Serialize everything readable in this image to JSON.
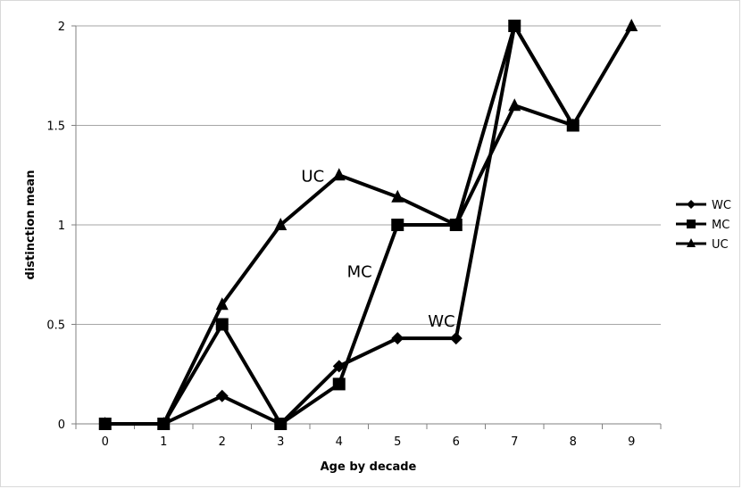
{
  "chart_data": {
    "type": "line",
    "title": "",
    "xlabel": "Age by decade",
    "ylabel": "distinction mean",
    "x": [
      0,
      1,
      2,
      3,
      4,
      5,
      6,
      7,
      8,
      9
    ],
    "x_tick_labels": [
      "0",
      "1",
      "2",
      "3",
      "4",
      "5",
      "6",
      "7",
      "8",
      "9"
    ],
    "y_ticks": [
      0,
      0.5,
      1,
      1.5,
      2
    ],
    "y_tick_labels": [
      "0",
      "0.5",
      "1",
      "1.5",
      "2"
    ],
    "ylim": [
      0,
      2
    ],
    "grid": "horizontal",
    "legend_position": "right",
    "series": [
      {
        "name": "WC",
        "marker": "diamond",
        "color": "#000000",
        "values": [
          0,
          0,
          0.14,
          0,
          0.29,
          0.43,
          0.43,
          2,
          1.5,
          null
        ]
      },
      {
        "name": "MC",
        "marker": "square",
        "color": "#000000",
        "values": [
          0,
          0,
          0.5,
          0,
          0.2,
          1,
          1,
          2,
          1.5,
          null
        ]
      },
      {
        "name": "UC",
        "marker": "triangle",
        "color": "#000000",
        "values": [
          0,
          0,
          0.6,
          1,
          1.25,
          1.14,
          1,
          1.6,
          1.5,
          2
        ]
      }
    ],
    "annotations": [
      {
        "text": "UC",
        "x": 3.55,
        "y": 1.25
      },
      {
        "text": "MC",
        "x": 4.35,
        "y": 0.77
      },
      {
        "text": "WC",
        "x": 5.75,
        "y": 0.52
      }
    ]
  }
}
